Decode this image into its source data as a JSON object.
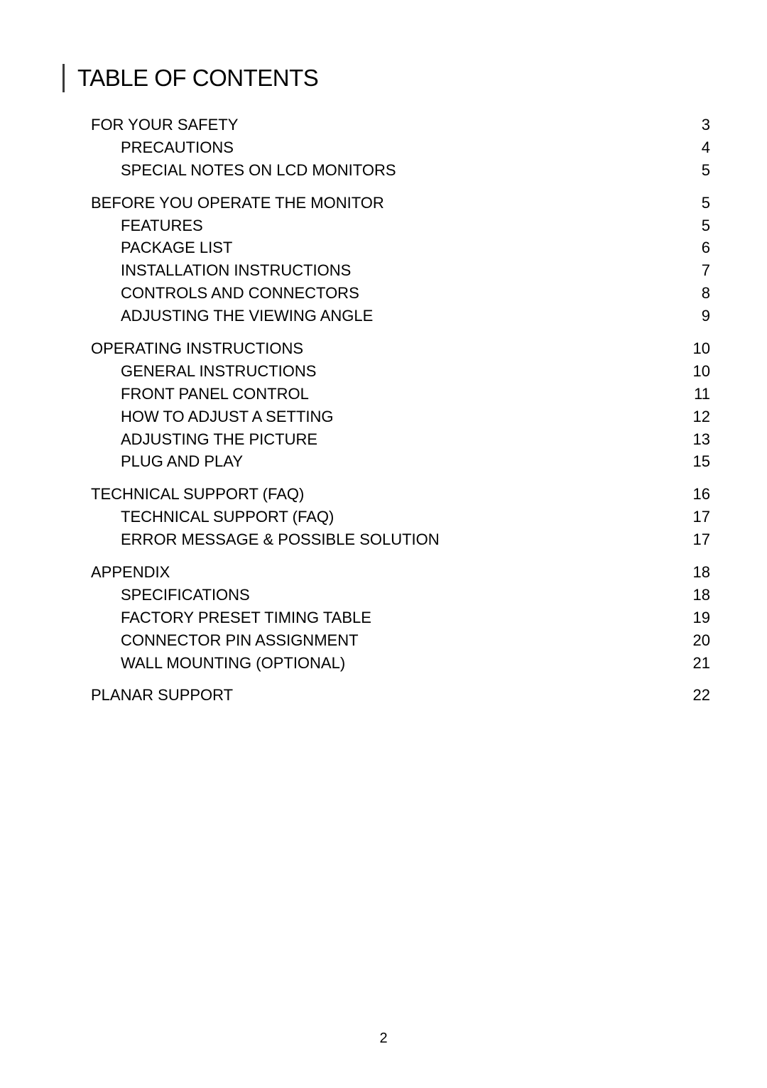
{
  "title": "TABLE OF CONTENTS",
  "toc": [
    {
      "label": "FOR YOUR SAFETY",
      "page": "3",
      "children": [
        {
          "label": "PRECAUTIONS ",
          "page": "4"
        },
        {
          "label": "SPECIAL NOTES ON LCD MONITORS ",
          "page": "5"
        }
      ]
    },
    {
      "label": "BEFORE YOU OPERATE THE MONITOR  ",
      "page": "5",
      "children": [
        {
          "label": "FEATURES  ",
          "page": "5"
        },
        {
          "label": "PACKAGE LIST",
          "page": "6"
        },
        {
          "label": "INSTALLATION INSTRUCTIONS  ",
          "page": "7"
        },
        {
          "label": "CONTROLS AND CONNECTORS ",
          "page": "8"
        },
        {
          "label": "ADJUSTING THE VIEWING ANGLE   ",
          "page": "9"
        }
      ]
    },
    {
      "label": "OPERATING INSTRUCTIONS",
      "page": " 10",
      "children": [
        {
          "label": "GENERAL INSTRUCTIONS",
          "page": " 10"
        },
        {
          "label": "FRONT PANEL CONTROL  ",
          "page": " 11"
        },
        {
          "label": "HOW TO ADJUST A SETTING",
          "page": " 12"
        },
        {
          "label": "ADJUSTING THE PICTURE",
          "page": " 13"
        },
        {
          "label": "PLUG AND PLAY",
          "page": " 15"
        }
      ]
    },
    {
      "label": "TECHNICAL SUPPORT (FAQ)  ",
      "page": " 16",
      "children": [
        {
          "label": "TECHNICAL SUPPORT (FAQ)",
          "page": " 17"
        },
        {
          "label": "ERROR MESSAGE & POSSIBLE SOLUTION",
          "page": " 17"
        }
      ]
    },
    {
      "label": "APPENDIX",
      "page": " 18",
      "children": [
        {
          "label": "SPECIFICATIONS ",
          "page": " 18"
        },
        {
          "label": "FACTORY PRESET TIMING TABLE  ",
          "page": " 19"
        },
        {
          "label": "CONNECTOR PIN ASSIGNMENT  ",
          "page": " 20"
        },
        {
          "label": "WALL MOUNTING (OPTIONAL)",
          "page": " 21"
        }
      ]
    },
    {
      "label": "PLANAR SUPPORT",
      "page": " 22",
      "children": []
    }
  ],
  "page_number": "2"
}
